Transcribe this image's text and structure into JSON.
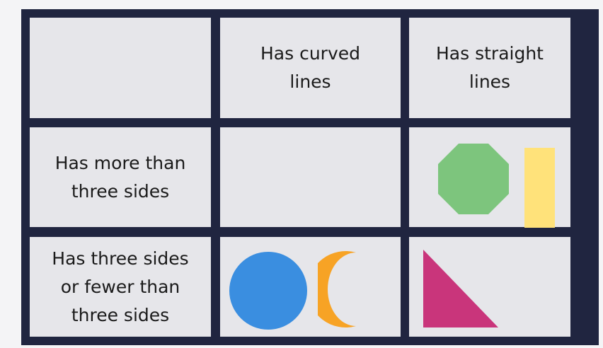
{
  "table": {
    "header": {
      "corner": "",
      "col_curved": "Has curved lines",
      "col_straight": "Has straight lines"
    },
    "rows": [
      {
        "label": "Has more than three sides"
      },
      {
        "label": "Has three sides or fewer than three sides"
      }
    ]
  },
  "shapes": {
    "octagon": {
      "name": "octagon",
      "color": "#7dc57d"
    },
    "rectangle": {
      "name": "rectangle",
      "color": "#ffe27a"
    },
    "circle": {
      "name": "circle",
      "color": "#3a8ee0"
    },
    "crescent": {
      "name": "crescent",
      "color": "#f7a325"
    },
    "triangle": {
      "name": "right-triangle",
      "color": "#c9357b"
    }
  },
  "colors": {
    "grid_border": "#202540",
    "cell_background": "#e6e6ea"
  }
}
